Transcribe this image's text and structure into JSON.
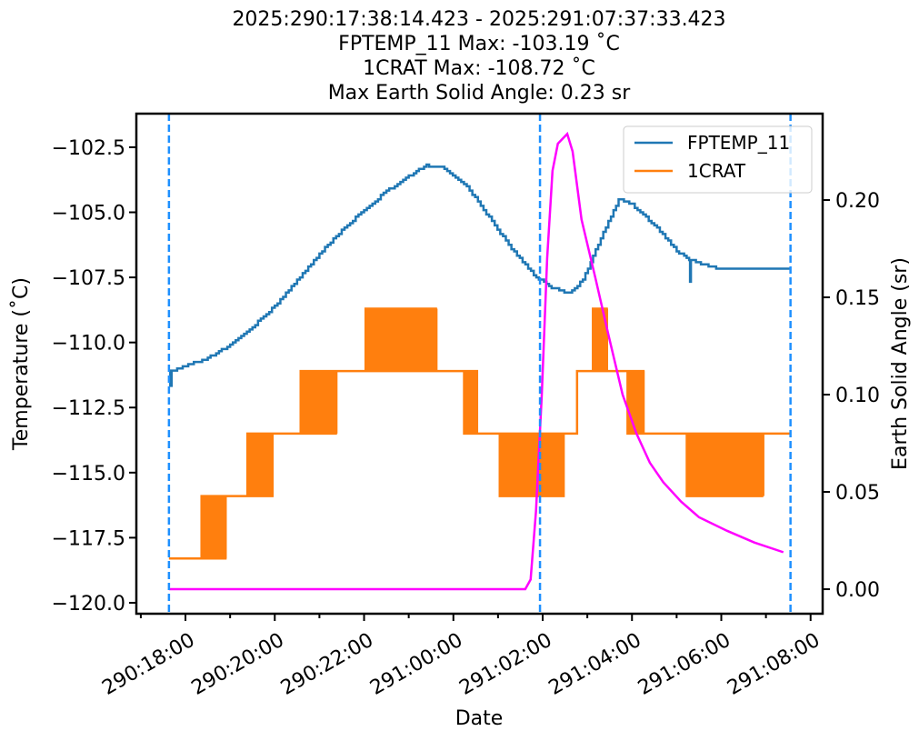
{
  "chart_data": {
    "type": "line",
    "title_lines": [
      "2025:290:17:38:14.423 - 2025:291:07:37:33.423",
      "FPTEMP_11 Max: -103.19 ˚C",
      "1CRAT Max: -108.72 ˚C",
      "Max Earth Solid Angle: 0.23 sr"
    ],
    "xlabel": "Date",
    "ylabel": "Temperature ($^\\circ$C)",
    "ylabel_display": "Temperature (˚C)",
    "y2label": "Earth Solid Angle (sr)",
    "x_units": "hours since 290:18:00",
    "xlim": [
      -1.1,
      14.27
    ],
    "ylim": [
      -120.42,
      -101.21
    ],
    "y2lim": [
      -0.0126,
      0.2444
    ],
    "x_ticks": [
      {
        "value": 0,
        "label": "290:18:00"
      },
      {
        "value": 2,
        "label": "290:20:00"
      },
      {
        "value": 4,
        "label": "290:22:00"
      },
      {
        "value": 6,
        "label": "291:00:00"
      },
      {
        "value": 8,
        "label": "291:02:00"
      },
      {
        "value": 10,
        "label": "291:04:00"
      },
      {
        "value": 12,
        "label": "291:06:00"
      },
      {
        "value": 14,
        "label": "291:08:00"
      }
    ],
    "y_ticks": [
      {
        "value": -102.5,
        "label": "−102.5"
      },
      {
        "value": -105.0,
        "label": "−105.0"
      },
      {
        "value": -107.5,
        "label": "−107.5"
      },
      {
        "value": -110.0,
        "label": "−110.0"
      },
      {
        "value": -112.5,
        "label": "−112.5"
      },
      {
        "value": -115.0,
        "label": "−115.0"
      },
      {
        "value": -117.5,
        "label": "−117.5"
      },
      {
        "value": -120.0,
        "label": "−120.0"
      }
    ],
    "y2_ticks": [
      {
        "value": 0.0,
        "label": "0.00"
      },
      {
        "value": 0.05,
        "label": "0.05"
      },
      {
        "value": 0.1,
        "label": "0.10"
      },
      {
        "value": 0.15,
        "label": "0.15"
      },
      {
        "value": 0.2,
        "label": "0.20"
      }
    ],
    "vlines": [
      -0.37,
      7.94,
      13.55
    ],
    "legend": {
      "placement": "top-right",
      "entries": [
        "FPTEMP_11",
        "1CRAT"
      ]
    },
    "series": [
      {
        "name": "FPTEMP_11",
        "axis": "left",
        "color": "#1f77b4",
        "points": [
          [
            -0.37,
            -111.1
          ],
          [
            -0.34,
            -111.7
          ],
          [
            -0.31,
            -111.1
          ],
          [
            0.0,
            -110.9
          ],
          [
            0.5,
            -110.6
          ],
          [
            1.0,
            -110.1
          ],
          [
            1.5,
            -109.4
          ],
          [
            2.0,
            -108.6
          ],
          [
            2.5,
            -107.6
          ],
          [
            3.0,
            -106.6
          ],
          [
            3.5,
            -105.7
          ],
          [
            4.0,
            -104.9
          ],
          [
            4.5,
            -104.2
          ],
          [
            5.0,
            -103.6
          ],
          [
            5.4,
            -103.2
          ],
          [
            5.8,
            -103.3
          ],
          [
            6.3,
            -104.0
          ],
          [
            6.8,
            -105.2
          ],
          [
            7.3,
            -106.4
          ],
          [
            7.8,
            -107.4
          ],
          [
            8.2,
            -107.9
          ],
          [
            8.6,
            -108.1
          ],
          [
            8.9,
            -107.6
          ],
          [
            9.3,
            -106.0
          ],
          [
            9.7,
            -104.5
          ],
          [
            10.0,
            -104.7
          ],
          [
            10.5,
            -105.5
          ],
          [
            11.0,
            -106.5
          ],
          [
            11.28,
            -106.8
          ],
          [
            11.3,
            -107.7
          ],
          [
            11.32,
            -106.8
          ],
          [
            11.6,
            -107.0
          ],
          [
            12.0,
            -107.2
          ],
          [
            13.55,
            -107.2
          ]
        ]
      },
      {
        "name": "1CRAT",
        "axis": "left",
        "color": "#ff7f0e",
        "segments": [
          [
            -0.37,
            0.33,
            -118.3,
            null
          ],
          [
            0.33,
            0.9,
            -118.3,
            -115.9
          ],
          [
            0.9,
            1.34,
            -115.9,
            null
          ],
          [
            1.34,
            1.95,
            -115.9,
            -113.5
          ],
          [
            1.95,
            2.56,
            -113.5,
            null
          ],
          [
            2.56,
            3.38,
            -113.5,
            -111.1
          ],
          [
            3.38,
            3.99,
            -111.1,
            null
          ],
          [
            3.99,
            5.62,
            -111.1,
            -108.7
          ],
          [
            5.62,
            6.23,
            -111.1,
            null
          ],
          [
            6.23,
            6.53,
            -111.1,
            -113.5
          ],
          [
            6.53,
            7.0,
            -113.5,
            null
          ],
          [
            7.0,
            8.47,
            -113.5,
            -115.9
          ],
          [
            8.47,
            8.77,
            -113.5,
            null
          ],
          [
            8.77,
            9.08,
            -111.1,
            null
          ],
          [
            9.08,
            9.44,
            -111.1,
            -108.7
          ],
          [
            9.44,
            9.89,
            -111.1,
            null
          ],
          [
            9.89,
            10.26,
            -111.1,
            -113.5
          ],
          [
            10.26,
            11.21,
            -113.5,
            null
          ],
          [
            11.21,
            12.94,
            -113.5,
            -115.9
          ],
          [
            12.94,
            13.55,
            -113.5,
            null
          ]
        ]
      },
      {
        "name": "Earth Solid Angle",
        "axis": "right",
        "color": "#ff00ff",
        "points": [
          [
            -0.37,
            0
          ],
          [
            7.61,
            0
          ],
          [
            7.73,
            0.005
          ],
          [
            7.85,
            0.04
          ],
          [
            7.98,
            0.1
          ],
          [
            8.1,
            0.17
          ],
          [
            8.22,
            0.215
          ],
          [
            8.34,
            0.229
          ],
          [
            8.55,
            0.234
          ],
          [
            8.67,
            0.225
          ],
          [
            8.87,
            0.19
          ],
          [
            9.18,
            0.16
          ],
          [
            9.48,
            0.13
          ],
          [
            9.79,
            0.1
          ],
          [
            10.1,
            0.08
          ],
          [
            10.4,
            0.065
          ],
          [
            10.7,
            0.055
          ],
          [
            11.1,
            0.045
          ],
          [
            11.5,
            0.037
          ],
          [
            12.13,
            0.03
          ],
          [
            12.74,
            0.024
          ],
          [
            13.39,
            0.019
          ]
        ]
      }
    ]
  }
}
